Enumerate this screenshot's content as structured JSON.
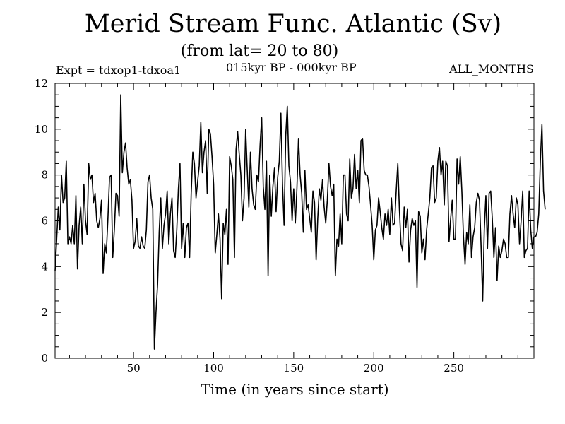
{
  "header": {
    "title": "Merid Stream Func. Atlantic (Sv)",
    "subtitle": "(from lat= 20 to 80)",
    "experiment": "Expt = tdxop1-tdxoa1",
    "period": "015kyr BP - 000kyr BP",
    "months": "ALL_MONTHS"
  },
  "chart_data": {
    "type": "line",
    "title": "Merid Stream Func. Atlantic (Sv)",
    "xlabel": "Time (in years since start)",
    "ylabel": "",
    "xlim": [
      1,
      300
    ],
    "ylim": [
      0,
      12
    ],
    "xticks": [
      50,
      100,
      150,
      200,
      250
    ],
    "yticks": [
      0,
      2,
      4,
      6,
      8,
      10,
      12
    ],
    "grid": false,
    "series": [
      {
        "name": "",
        "x_start": 1,
        "x_step": 1,
        "values": [
          3.8,
          5.2,
          6.6,
          5.6,
          8.0,
          6.8,
          7.0,
          8.6,
          5.0,
          5.3,
          5.0,
          5.8,
          5.0,
          7.1,
          3.9,
          5.8,
          6.6,
          5.0,
          7.6,
          6.0,
          5.4,
          8.5,
          7.8,
          8.0,
          6.8,
          7.2,
          6.0,
          5.7,
          6.1,
          6.9,
          3.7,
          5.0,
          4.6,
          6.1,
          7.9,
          8.0,
          4.4,
          5.6,
          7.2,
          7.1,
          6.2,
          11.5,
          8.1,
          9.0,
          9.4,
          8.3,
          7.6,
          7.8,
          6.9,
          4.8,
          5.1,
          6.1,
          4.9,
          4.8,
          5.3,
          4.9,
          4.8,
          5.6,
          7.7,
          8.0,
          7.0,
          6.5,
          0.4,
          2.0,
          3.2,
          5.5,
          7.0,
          4.8,
          5.8,
          6.3,
          7.3,
          5.0,
          6.3,
          7.0,
          4.7,
          4.4,
          5.6,
          7.4,
          8.5,
          4.8,
          5.9,
          4.4,
          5.7,
          5.9,
          4.4,
          7.2,
          9.0,
          8.5,
          7.0,
          7.7,
          8.4,
          10.3,
          8.1,
          9.0,
          9.5,
          7.2,
          10.0,
          9.8,
          8.8,
          7.6,
          4.6,
          5.4,
          6.3,
          5.2,
          2.6,
          5.9,
          5.4,
          6.5,
          4.1,
          8.8,
          8.4,
          7.8,
          4.4,
          9.1,
          9.9,
          8.9,
          8.0,
          6.0,
          7.0,
          10.0,
          8.2,
          6.6,
          9.0,
          7.4,
          6.7,
          6.5,
          8.0,
          7.7,
          9.3,
          10.5,
          7.5,
          6.5,
          8.6,
          3.6,
          8.0,
          6.2,
          7.5,
          8.3,
          6.4,
          7.9,
          8.6,
          10.7,
          7.6,
          5.8,
          9.7,
          11.0,
          8.4,
          7.7,
          6.0,
          7.4,
          5.9,
          7.4,
          9.6,
          8.0,
          7.2,
          5.5,
          8.2,
          6.5,
          6.7,
          6.1,
          5.5,
          7.3,
          6.8,
          4.3,
          6.1,
          7.4,
          6.9,
          7.8,
          6.6,
          5.9,
          6.9,
          8.5,
          7.5,
          7.1,
          7.6,
          3.6,
          5.2,
          4.9,
          6.3,
          5.0,
          8.0,
          8.0,
          6.3,
          6.0,
          8.7,
          7.0,
          7.4,
          8.9,
          7.4,
          8.2,
          6.8,
          9.5,
          9.6,
          8.2,
          8.0,
          8.0,
          7.5,
          6.7,
          5.8,
          4.3,
          5.6,
          5.8,
          7.0,
          6.4,
          5.7,
          5.2,
          6.3,
          5.8,
          6.5,
          5.4,
          7.0,
          5.8,
          5.9,
          7.3,
          8.5,
          6.5,
          5.0,
          4.7,
          6.6,
          5.7,
          6.5,
          4.2,
          5.6,
          6.1,
          5.8,
          6.0,
          3.1,
          6.4,
          6.2,
          4.6,
          5.2,
          4.3,
          5.6,
          6.3,
          7.0,
          8.3,
          8.4,
          6.8,
          7.0,
          8.6,
          9.2,
          8.0,
          8.6,
          6.7,
          8.6,
          8.4,
          5.1,
          6.1,
          6.9,
          5.2,
          5.2,
          8.7,
          7.6,
          8.8,
          7.3,
          5.3,
          4.1,
          5.5,
          5.0,
          6.7,
          4.4,
          5.3,
          5.7,
          6.8,
          7.2,
          6.9,
          4.9,
          2.5,
          5.6,
          7.1,
          4.8,
          7.2,
          7.3,
          6.1,
          4.4,
          5.7,
          3.4,
          4.9,
          4.4,
          4.7,
          5.2,
          5.0,
          4.4,
          4.4,
          6.3,
          7.1,
          6.3,
          5.7,
          7.0,
          6.7,
          5.0,
          6.0,
          7.3,
          4.4,
          4.7,
          4.8,
          7.3,
          5.6,
          4.8,
          5.3,
          5.3,
          5.5,
          6.3,
          8.6,
          10.2,
          7.3,
          6.5
        ]
      }
    ]
  }
}
